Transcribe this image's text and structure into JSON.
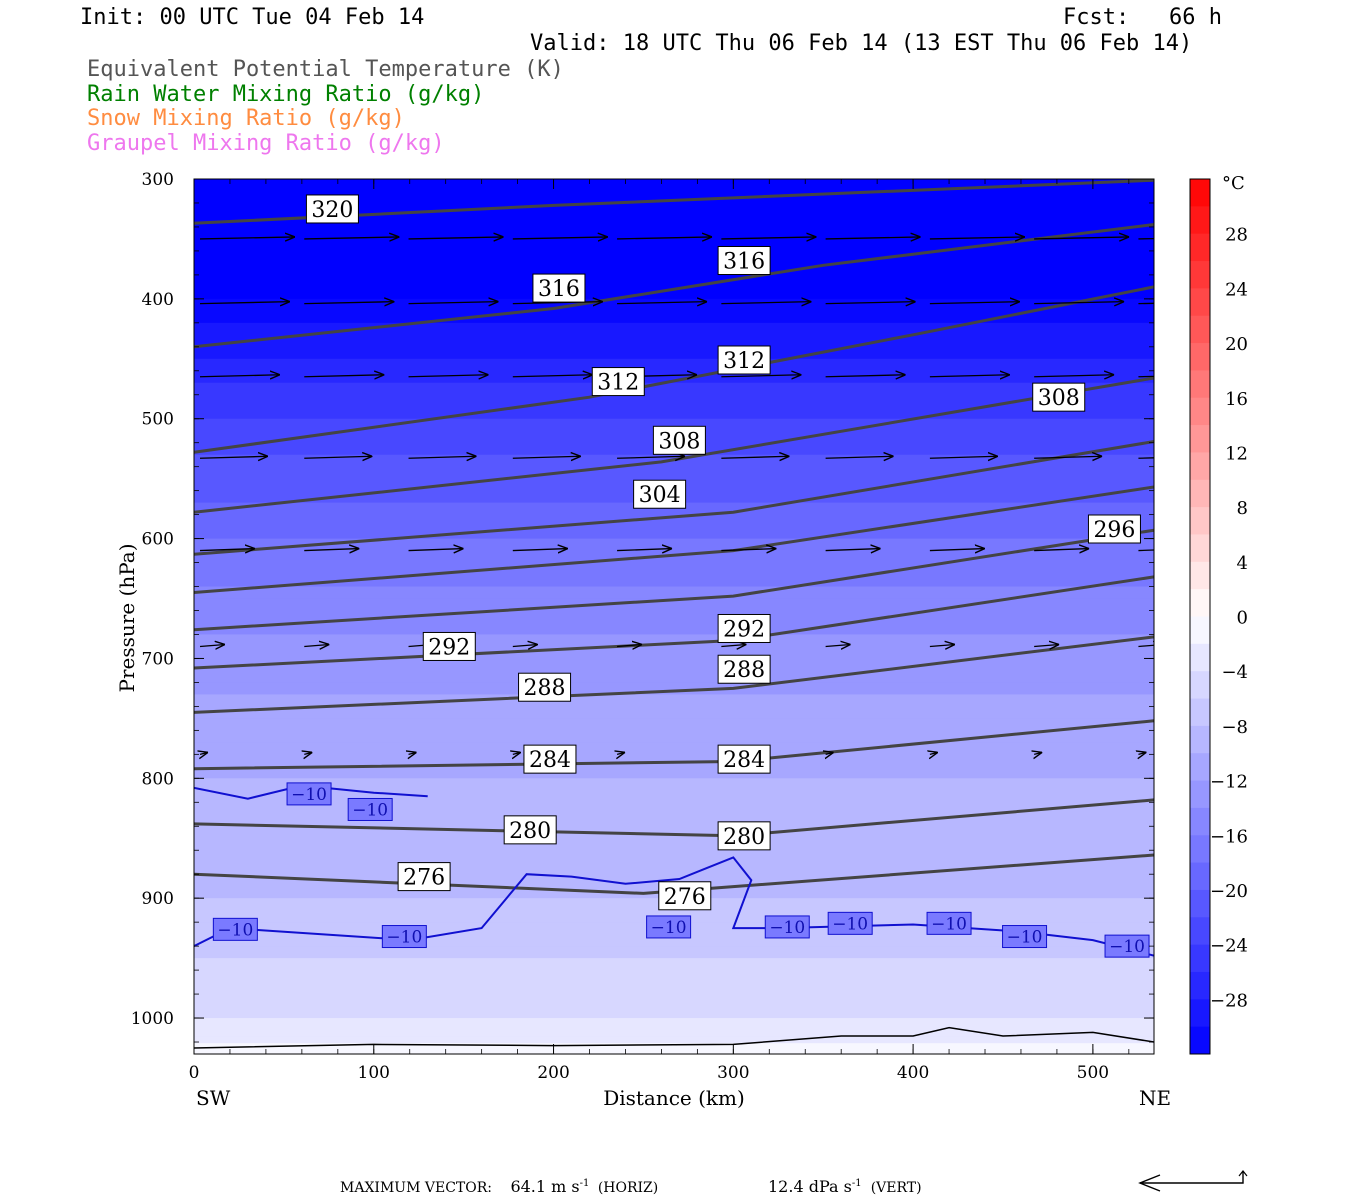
{
  "header": {
    "init": "Init: 00 UTC Tue 04 Feb 14",
    "fcst": "Fcst:   66 h",
    "valid": "Valid: 18 UTC Thu 06 Feb 14 (13 EST Thu 06 Feb 14)"
  },
  "legend": [
    {
      "text": "Equivalent Potential Temperature (K)",
      "color": "#555555"
    },
    {
      "text": "Rain Water Mixing Ratio (g/kg)",
      "color": "#008000"
    },
    {
      "text": "Snow Mixing Ratio (g/kg)",
      "color": "#ff8c40"
    },
    {
      "text": "Graupel Mixing Ratio (g/kg)",
      "color": "#ee77ee"
    }
  ],
  "footer": {
    "max_vector_label": "MAXIMUM VECTOR:",
    "horiz_value": "64.1 m s",
    "horiz_exp": "-1",
    "horiz_unit": "(HORIZ)",
    "vert_value": "12.4 dPa s",
    "vert_exp": "-1",
    "vert_unit": "(VERT)"
  },
  "chart_data": {
    "type": "cross-section",
    "xlabel": "Distance (km)",
    "ylabel": "Pressure (hPa)",
    "x_left_label": "SW",
    "x_right_label": "NE",
    "xlim": [
      0,
      534
    ],
    "ylim": [
      1030,
      300
    ],
    "x_ticks": [
      0,
      100,
      200,
      300,
      400,
      500
    ],
    "y_ticks": [
      300,
      400,
      500,
      600,
      700,
      800,
      900,
      1000
    ],
    "colorbar": {
      "unit": "°C",
      "labels": [
        28,
        24,
        20,
        16,
        12,
        8,
        4,
        0,
        -4,
        -8,
        -12,
        -16,
        -20,
        -24,
        -28
      ],
      "range": [
        -32,
        32
      ],
      "step": 2
    },
    "temperature_field": {
      "description_levels": [
        {
          "p": 300,
          "t": -33
        },
        {
          "p": 400,
          "t": -32
        },
        {
          "p": 500,
          "t": -24
        },
        {
          "p": 600,
          "t": -18
        },
        {
          "p": 700,
          "t": -13
        },
        {
          "p": 800,
          "t": -10
        },
        {
          "p": 900,
          "t": -8
        },
        {
          "p": 1000,
          "t": -4
        },
        {
          "p": 1030,
          "t": -1
        }
      ]
    },
    "theta_e_labels": [
      {
        "value": "320",
        "x": 77,
        "p": 325
      },
      {
        "value": "316",
        "x": 203,
        "p": 391
      },
      {
        "value": "316",
        "x": 306,
        "p": 368
      },
      {
        "value": "312",
        "x": 236,
        "p": 469
      },
      {
        "value": "312",
        "x": 306,
        "p": 451
      },
      {
        "value": "308",
        "x": 270,
        "p": 518
      },
      {
        "value": "308",
        "x": 481,
        "p": 482
      },
      {
        "value": "304",
        "x": 259,
        "p": 563
      },
      {
        "value": "296",
        "x": 512,
        "p": 592
      },
      {
        "value": "292",
        "x": 306,
        "p": 675
      },
      {
        "value": "292",
        "x": 142,
        "p": 690
      },
      {
        "value": "288",
        "x": 195,
        "p": 724
      },
      {
        "value": "288",
        "x": 306,
        "p": 709
      },
      {
        "value": "284",
        "x": 198,
        "p": 784
      },
      {
        "value": "284",
        "x": 306,
        "p": 784
      },
      {
        "value": "280",
        "x": 187,
        "p": 843
      },
      {
        "value": "280",
        "x": 306,
        "p": 848
      },
      {
        "value": "276",
        "x": 128,
        "p": 882
      },
      {
        "value": "276",
        "x": 273,
        "p": 898
      }
    ],
    "temp_contour_labels": [
      {
        "value": "−10",
        "x": 64,
        "p": 813
      },
      {
        "value": "−10",
        "x": 98,
        "p": 826
      },
      {
        "value": "−10",
        "x": 23,
        "p": 926
      },
      {
        "value": "−10",
        "x": 117,
        "p": 932
      },
      {
        "value": "−10",
        "x": 264,
        "p": 924
      },
      {
        "value": "−10",
        "x": 330,
        "p": 924
      },
      {
        "value": "−10",
        "x": 365,
        "p": 921
      },
      {
        "value": "−10",
        "x": 420,
        "p": 921
      },
      {
        "value": "−10",
        "x": 462,
        "p": 932
      },
      {
        "value": "−10",
        "x": 519,
        "p": 940
      }
    ]
  }
}
